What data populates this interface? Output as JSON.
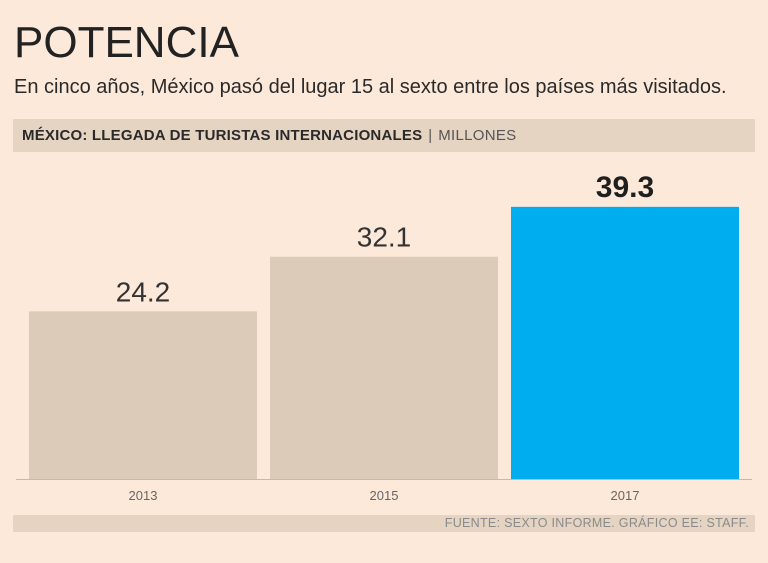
{
  "header": {
    "title": "POTENCIA",
    "subtitle": "En cinco años, México pasó del lugar 15 al sexto entre los países más visitados."
  },
  "chart_header": {
    "title": "MÉXICO: LLEGADA DE TURISTAS INTERNACIONALES",
    "separator": "|",
    "unit": "MILLONES"
  },
  "chart_data": {
    "type": "bar",
    "title": "MÉXICO: LLEGADA DE TURISTAS INTERNACIONALES",
    "ylabel": "MILLONES",
    "categories": [
      "2013",
      "2015",
      "2017"
    ],
    "values": [
      24.2,
      32.1,
      39.3
    ],
    "value_labels": [
      "24.2",
      "32.1",
      "39.3"
    ],
    "ylim": [
      0,
      40
    ],
    "grid": false,
    "colors": [
      "#dccbb8",
      "#dccbb8",
      "#00adef"
    ],
    "highlight_index": 2
  },
  "footer": {
    "source": "FUENTE: SEXTO INFORME. GRÁFICO EE: STAFF."
  }
}
